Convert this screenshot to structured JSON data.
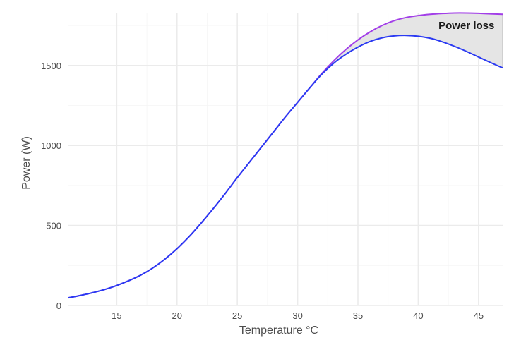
{
  "chart_data": {
    "type": "line",
    "title": "",
    "xlabel": "Temperature °C",
    "ylabel": "Power (W)",
    "xlim": [
      11,
      47
    ],
    "ylim": [
      0,
      1830
    ],
    "x_ticks": [
      15,
      20,
      25,
      30,
      35,
      40,
      45
    ],
    "y_ticks": [
      0,
      500,
      1000,
      1500
    ],
    "grid": true,
    "legend": "none",
    "annotation": {
      "text": "Power loss",
      "x": 44,
      "y": 1750
    },
    "colors": {
      "potential": "#a23ee8",
      "actual": "#2b3af2",
      "fill": "#e5e5e5",
      "fill_edge": "#c9c9c9"
    },
    "series": [
      {
        "key": "potential",
        "x": [
          11,
          12,
          13,
          14,
          15,
          16,
          17,
          18,
          19,
          20,
          21,
          22,
          23,
          24,
          25,
          26,
          27,
          28,
          29,
          30,
          31,
          32,
          33,
          34,
          35,
          36,
          37,
          38,
          39,
          40,
          41,
          42,
          43,
          44,
          45,
          46,
          47
        ],
        "values": [
          48,
          63,
          80,
          100,
          125,
          155,
          190,
          235,
          290,
          355,
          430,
          515,
          605,
          700,
          800,
          895,
          990,
          1085,
          1180,
          1270,
          1360,
          1450,
          1530,
          1600,
          1660,
          1710,
          1750,
          1780,
          1800,
          1812,
          1820,
          1825,
          1828,
          1828,
          1826,
          1823,
          1820
        ]
      },
      {
        "key": "actual",
        "x": [
          11,
          12,
          13,
          14,
          15,
          16,
          17,
          18,
          19,
          20,
          21,
          22,
          23,
          24,
          25,
          26,
          27,
          28,
          29,
          30,
          31,
          32,
          33,
          34,
          35,
          36,
          37,
          38,
          39,
          40,
          41,
          42,
          43,
          44,
          45,
          46,
          47
        ],
        "values": [
          48,
          63,
          80,
          100,
          125,
          155,
          190,
          235,
          290,
          355,
          430,
          515,
          605,
          700,
          800,
          895,
          990,
          1085,
          1180,
          1270,
          1360,
          1445,
          1515,
          1570,
          1615,
          1650,
          1673,
          1685,
          1688,
          1683,
          1670,
          1648,
          1620,
          1588,
          1553,
          1518,
          1485
        ]
      }
    ]
  }
}
